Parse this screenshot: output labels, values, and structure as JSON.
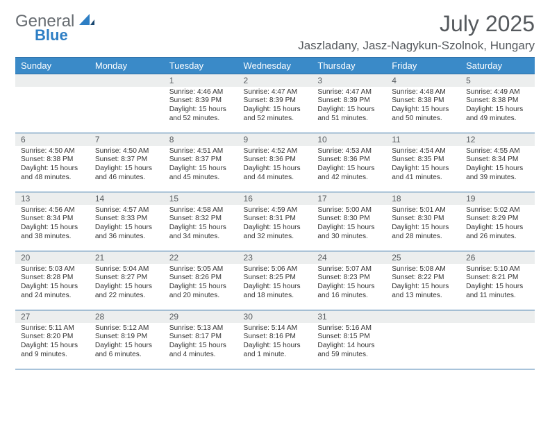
{
  "brand": {
    "text_general": "General",
    "text_blue": "Blue",
    "general_color": "#666b70",
    "blue_color": "#2d7ec4"
  },
  "header": {
    "month_title": "July 2025",
    "location": "Jaszladany, Jasz-Nagykun-Szolnok, Hungary",
    "title_color": "#55595d",
    "title_fontsize": 32,
    "location_fontsize": 17
  },
  "calendar": {
    "header_bg": "#3a8ac8",
    "header_text": "#ffffff",
    "daynum_bg": "#eceeee",
    "rule_color": "#2f6fa6",
    "body_font_size": 10.2,
    "day_labels": [
      "Sunday",
      "Monday",
      "Tuesday",
      "Wednesday",
      "Thursday",
      "Friday",
      "Saturday"
    ],
    "weeks": [
      [
        null,
        null,
        {
          "n": "1",
          "sunrise": "Sunrise: 4:46 AM",
          "sunset": "Sunset: 8:39 PM",
          "daylight": "Daylight: 15 hours and 52 minutes."
        },
        {
          "n": "2",
          "sunrise": "Sunrise: 4:47 AM",
          "sunset": "Sunset: 8:39 PM",
          "daylight": "Daylight: 15 hours and 52 minutes."
        },
        {
          "n": "3",
          "sunrise": "Sunrise: 4:47 AM",
          "sunset": "Sunset: 8:39 PM",
          "daylight": "Daylight: 15 hours and 51 minutes."
        },
        {
          "n": "4",
          "sunrise": "Sunrise: 4:48 AM",
          "sunset": "Sunset: 8:38 PM",
          "daylight": "Daylight: 15 hours and 50 minutes."
        },
        {
          "n": "5",
          "sunrise": "Sunrise: 4:49 AM",
          "sunset": "Sunset: 8:38 PM",
          "daylight": "Daylight: 15 hours and 49 minutes."
        }
      ],
      [
        {
          "n": "6",
          "sunrise": "Sunrise: 4:50 AM",
          "sunset": "Sunset: 8:38 PM",
          "daylight": "Daylight: 15 hours and 48 minutes."
        },
        {
          "n": "7",
          "sunrise": "Sunrise: 4:50 AM",
          "sunset": "Sunset: 8:37 PM",
          "daylight": "Daylight: 15 hours and 46 minutes."
        },
        {
          "n": "8",
          "sunrise": "Sunrise: 4:51 AM",
          "sunset": "Sunset: 8:37 PM",
          "daylight": "Daylight: 15 hours and 45 minutes."
        },
        {
          "n": "9",
          "sunrise": "Sunrise: 4:52 AM",
          "sunset": "Sunset: 8:36 PM",
          "daylight": "Daylight: 15 hours and 44 minutes."
        },
        {
          "n": "10",
          "sunrise": "Sunrise: 4:53 AM",
          "sunset": "Sunset: 8:36 PM",
          "daylight": "Daylight: 15 hours and 42 minutes."
        },
        {
          "n": "11",
          "sunrise": "Sunrise: 4:54 AM",
          "sunset": "Sunset: 8:35 PM",
          "daylight": "Daylight: 15 hours and 41 minutes."
        },
        {
          "n": "12",
          "sunrise": "Sunrise: 4:55 AM",
          "sunset": "Sunset: 8:34 PM",
          "daylight": "Daylight: 15 hours and 39 minutes."
        }
      ],
      [
        {
          "n": "13",
          "sunrise": "Sunrise: 4:56 AM",
          "sunset": "Sunset: 8:34 PM",
          "daylight": "Daylight: 15 hours and 38 minutes."
        },
        {
          "n": "14",
          "sunrise": "Sunrise: 4:57 AM",
          "sunset": "Sunset: 8:33 PM",
          "daylight": "Daylight: 15 hours and 36 minutes."
        },
        {
          "n": "15",
          "sunrise": "Sunrise: 4:58 AM",
          "sunset": "Sunset: 8:32 PM",
          "daylight": "Daylight: 15 hours and 34 minutes."
        },
        {
          "n": "16",
          "sunrise": "Sunrise: 4:59 AM",
          "sunset": "Sunset: 8:31 PM",
          "daylight": "Daylight: 15 hours and 32 minutes."
        },
        {
          "n": "17",
          "sunrise": "Sunrise: 5:00 AM",
          "sunset": "Sunset: 8:30 PM",
          "daylight": "Daylight: 15 hours and 30 minutes."
        },
        {
          "n": "18",
          "sunrise": "Sunrise: 5:01 AM",
          "sunset": "Sunset: 8:30 PM",
          "daylight": "Daylight: 15 hours and 28 minutes."
        },
        {
          "n": "19",
          "sunrise": "Sunrise: 5:02 AM",
          "sunset": "Sunset: 8:29 PM",
          "daylight": "Daylight: 15 hours and 26 minutes."
        }
      ],
      [
        {
          "n": "20",
          "sunrise": "Sunrise: 5:03 AM",
          "sunset": "Sunset: 8:28 PM",
          "daylight": "Daylight: 15 hours and 24 minutes."
        },
        {
          "n": "21",
          "sunrise": "Sunrise: 5:04 AM",
          "sunset": "Sunset: 8:27 PM",
          "daylight": "Daylight: 15 hours and 22 minutes."
        },
        {
          "n": "22",
          "sunrise": "Sunrise: 5:05 AM",
          "sunset": "Sunset: 8:26 PM",
          "daylight": "Daylight: 15 hours and 20 minutes."
        },
        {
          "n": "23",
          "sunrise": "Sunrise: 5:06 AM",
          "sunset": "Sunset: 8:25 PM",
          "daylight": "Daylight: 15 hours and 18 minutes."
        },
        {
          "n": "24",
          "sunrise": "Sunrise: 5:07 AM",
          "sunset": "Sunset: 8:23 PM",
          "daylight": "Daylight: 15 hours and 16 minutes."
        },
        {
          "n": "25",
          "sunrise": "Sunrise: 5:08 AM",
          "sunset": "Sunset: 8:22 PM",
          "daylight": "Daylight: 15 hours and 13 minutes."
        },
        {
          "n": "26",
          "sunrise": "Sunrise: 5:10 AM",
          "sunset": "Sunset: 8:21 PM",
          "daylight": "Daylight: 15 hours and 11 minutes."
        }
      ],
      [
        {
          "n": "27",
          "sunrise": "Sunrise: 5:11 AM",
          "sunset": "Sunset: 8:20 PM",
          "daylight": "Daylight: 15 hours and 9 minutes."
        },
        {
          "n": "28",
          "sunrise": "Sunrise: 5:12 AM",
          "sunset": "Sunset: 8:19 PM",
          "daylight": "Daylight: 15 hours and 6 minutes."
        },
        {
          "n": "29",
          "sunrise": "Sunrise: 5:13 AM",
          "sunset": "Sunset: 8:17 PM",
          "daylight": "Daylight: 15 hours and 4 minutes."
        },
        {
          "n": "30",
          "sunrise": "Sunrise: 5:14 AM",
          "sunset": "Sunset: 8:16 PM",
          "daylight": "Daylight: 15 hours and 1 minute."
        },
        {
          "n": "31",
          "sunrise": "Sunrise: 5:16 AM",
          "sunset": "Sunset: 8:15 PM",
          "daylight": "Daylight: 14 hours and 59 minutes."
        },
        null,
        null
      ]
    ]
  }
}
